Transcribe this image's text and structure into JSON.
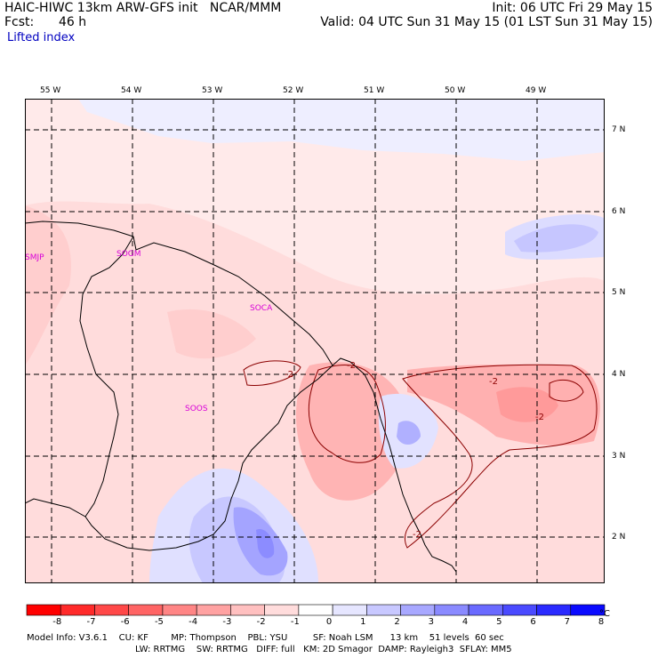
{
  "header": {
    "title": "HAIC-HIWC 13km ARW-GFS init   NCAR/MMM",
    "init": "Init: 06 UTC Fri 29 May 15",
    "fcst_label": "Fcst:",
    "fcst_value": "46 h",
    "valid": "Valid: 04 UTC Sun 31 May 15 (01 LST Sun 31 May 15)",
    "field": "Lifted index"
  },
  "map": {
    "lon_labels": [
      "55 W",
      "54 W",
      "53 W",
      "52 W",
      "51 W",
      "50 W",
      "49 W"
    ],
    "lat_labels": [
      "7 N",
      "6 N",
      "5 N",
      "4 N",
      "3 N",
      "2 N"
    ],
    "stations": [
      "SMJP",
      "SOGM",
      "SOCA",
      "SOOS"
    ],
    "contour_labels": [
      "-2",
      "-2",
      "-2",
      "-2",
      "-2"
    ],
    "colors": {
      "coast": "#000000",
      "grid": "#000000",
      "contour": "#8b0000",
      "station": "#d800d8"
    }
  },
  "colorbar": {
    "ticks": [
      "-8",
      "-7",
      "-6",
      "-5",
      "-4",
      "-3",
      "-2",
      "-1",
      "0",
      "1",
      "2",
      "3",
      "4",
      "5",
      "6",
      "7",
      "8"
    ],
    "unit": "°C",
    "colors": [
      "#ff0000",
      "#ff2a2a",
      "#ff4848",
      "#ff6464",
      "#ff8585",
      "#ffa2a2",
      "#ffc0c0",
      "#ffdcdc",
      "#ffffff",
      "#e6e6ff",
      "#c8c8ff",
      "#a8a8ff",
      "#8a8aff",
      "#6a6aff",
      "#4a4aff",
      "#2a2aff",
      "#0a0aff"
    ]
  },
  "footer": {
    "line1": "Model Info: V3.6.1    CU: KF        MP: Thompson    PBL: YSU         SF: Noah LSM      13 km    51 levels  60 sec",
    "line2": "LW: RRTMG    SW: RRTMG   DIFF: full   KM: 2D Smagor  DAMP: Rayleigh3  SFLAY: MM5"
  }
}
